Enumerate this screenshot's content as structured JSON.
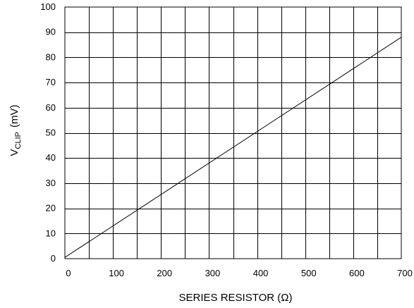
{
  "chart_data": {
    "type": "line",
    "title": "",
    "xlabel": "SERIES RESISTOR (Ω)",
    "ylabel": {
      "main": "V",
      "subscript": "CLIP",
      "unit": "(mV)"
    },
    "xlim": [
      0,
      700
    ],
    "ylim": [
      0,
      100
    ],
    "x_grid_step": 50,
    "y_grid_step": 10,
    "x_ticks": [
      0,
      100,
      200,
      300,
      400,
      500,
      600,
      700
    ],
    "y_ticks": [
      0,
      10,
      20,
      30,
      40,
      50,
      60,
      70,
      80,
      90,
      100
    ],
    "grid": true,
    "series": [
      {
        "x": [
          0,
          700
        ],
        "y": [
          0.5,
          88
        ],
        "color": "#000000"
      }
    ]
  }
}
